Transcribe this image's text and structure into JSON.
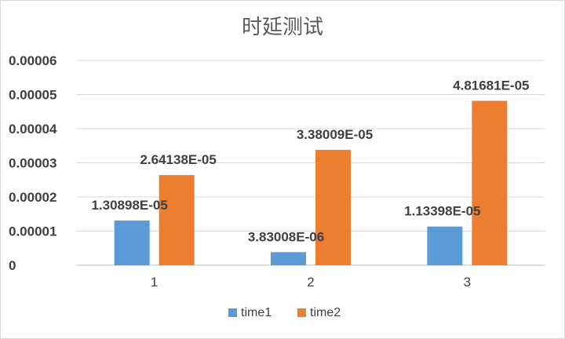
{
  "chart_data": {
    "type": "bar",
    "title": "时延测试",
    "xlabel": "",
    "ylabel": "",
    "categories": [
      "1",
      "2",
      "3"
    ],
    "ylim": [
      0,
      6e-05
    ],
    "yticks": [
      0,
      1e-05,
      2e-05,
      3e-05,
      4e-05,
      5e-05,
      6e-05
    ],
    "ytick_labels": [
      "0",
      "0.00001",
      "0.00002",
      "0.00003",
      "0.00004",
      "0.00005",
      "0.00006"
    ],
    "grid": true,
    "legend_position": "bottom",
    "series": [
      {
        "name": "time1",
        "color": "#5b9bd5",
        "values": [
          1.30898e-05,
          3.83008e-06,
          1.13398e-05
        ],
        "labels": [
          "1.30898E-05",
          "3.83008E-06",
          "1.13398E-05"
        ]
      },
      {
        "name": "time2",
        "color": "#ed7d31",
        "values": [
          2.64138e-05,
          3.38009e-05,
          4.81681e-05
        ],
        "labels": [
          "2.64138E-05",
          "3.38009E-05",
          "4.81681E-05"
        ]
      }
    ]
  }
}
